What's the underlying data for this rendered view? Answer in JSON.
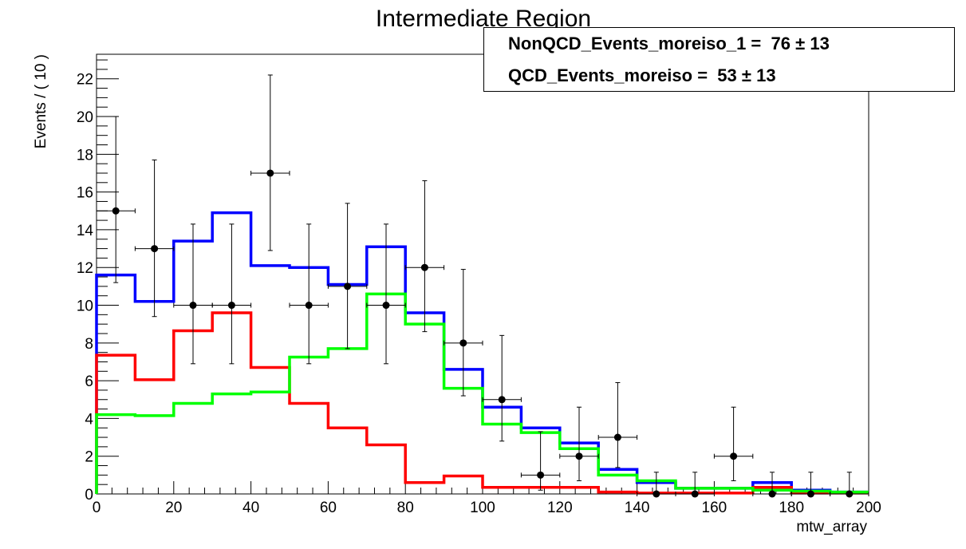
{
  "chart_data": {
    "type": "histogram",
    "title": "Intermediate Region",
    "xlabel": "mtw_array",
    "ylabel": "Events / ( 10 )",
    "xlim": [
      0,
      200
    ],
    "ylim": [
      0,
      23.3
    ],
    "xticks": [
      0,
      20,
      40,
      60,
      80,
      100,
      120,
      140,
      160,
      180,
      200
    ],
    "yticks": [
      0,
      2,
      4,
      6,
      8,
      10,
      12,
      14,
      16,
      18,
      20,
      22
    ],
    "bin_width": 10,
    "bin_edges": [
      0,
      10,
      20,
      30,
      40,
      50,
      60,
      70,
      80,
      90,
      100,
      110,
      120,
      130,
      140,
      150,
      160,
      170,
      180,
      190,
      200
    ],
    "data_points": {
      "x": [
        5,
        15,
        25,
        35,
        45,
        55,
        65,
        75,
        85,
        95,
        105,
        115,
        125,
        135,
        145,
        155,
        165,
        175,
        185,
        195
      ],
      "y": [
        15,
        13,
        10,
        10,
        17,
        10,
        11,
        10,
        12,
        8,
        5,
        1,
        2,
        3,
        0,
        0,
        2,
        0,
        0,
        0
      ],
      "err_low": [
        3.8,
        3.6,
        3.1,
        3.1,
        4.1,
        3.1,
        3.3,
        3.1,
        3.4,
        2.8,
        2.2,
        0.8,
        1.3,
        1.6,
        0,
        0,
        1.3,
        0,
        0,
        0
      ],
      "err_high": [
        5.0,
        4.7,
        4.3,
        4.3,
        5.2,
        4.3,
        4.4,
        4.3,
        4.6,
        3.9,
        3.4,
        2.3,
        2.6,
        2.9,
        1.15,
        1.15,
        2.6,
        1.15,
        1.15,
        1.15
      ]
    },
    "series": [
      {
        "color": "#0000ff",
        "values": [
          11.6,
          10.2,
          13.4,
          14.9,
          12.1,
          12.0,
          11.1,
          13.1,
          9.6,
          6.6,
          4.6,
          3.5,
          2.7,
          1.3,
          0.6,
          0.3,
          0.3,
          0.6,
          0.2,
          0.1
        ]
      },
      {
        "color": "#ff0000",
        "values": [
          7.35,
          6.05,
          8.65,
          9.6,
          6.7,
          4.8,
          3.5,
          2.6,
          0.6,
          0.95,
          0.35,
          0.35,
          0.35,
          0.1,
          0.05,
          0.05,
          0.05,
          0.35,
          0.05,
          0.05
        ]
      },
      {
        "color": "#00ff00",
        "values": [
          4.2,
          4.15,
          4.8,
          5.3,
          5.4,
          7.25,
          7.7,
          10.6,
          9.0,
          5.6,
          3.7,
          3.25,
          2.4,
          1.0,
          0.7,
          0.3,
          0.3,
          0.2,
          0.15,
          0.1
        ]
      }
    ],
    "legend_placement": "top-right",
    "legend": [
      {
        "label": "NonQCD_Events_moreiso_1 =",
        "value": "76",
        "error": "13"
      },
      {
        "label": "QCD_Events_moreiso =",
        "value": "53",
        "error": "13"
      }
    ],
    "grid": false
  }
}
